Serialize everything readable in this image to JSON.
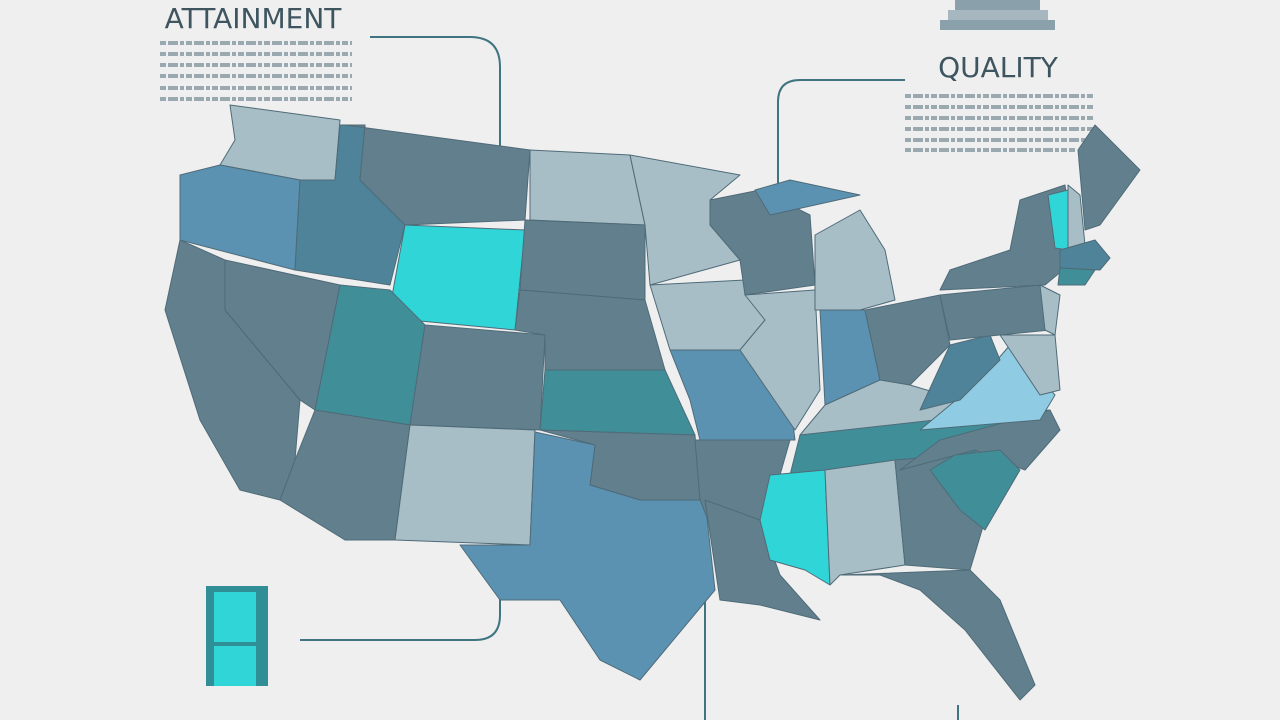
{
  "labels": {
    "attainment": "ATTAINMENT",
    "quality": "QUALITY"
  }
}
